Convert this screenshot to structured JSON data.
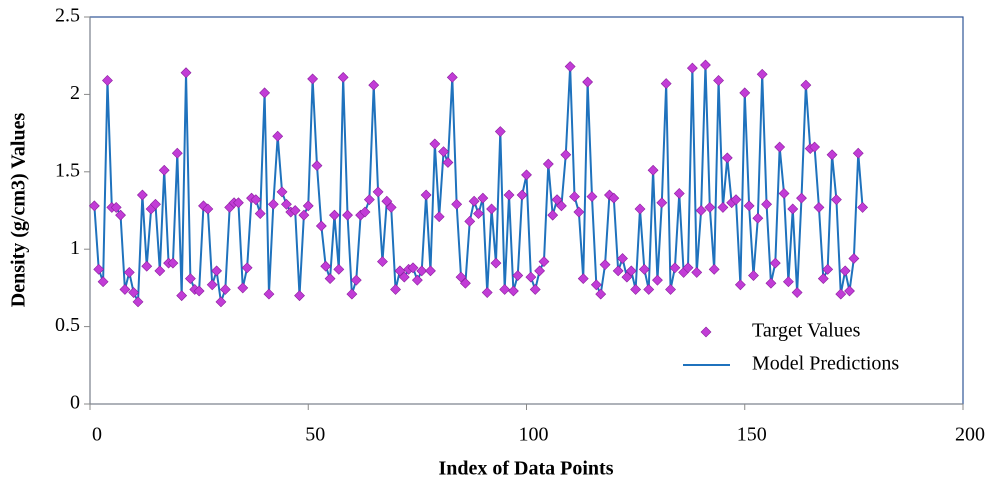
{
  "chart_data": {
    "type": "scatter-line",
    "xlabel": "Index of Data Points",
    "ylabel": "Density (g/cm3) Values",
    "xlim": [
      0,
      200
    ],
    "xticks": [
      0,
      50,
      100,
      150,
      200
    ],
    "ylim": [
      0,
      2.5
    ],
    "yticks": [
      0,
      0.5,
      1,
      1.5,
      2,
      2.5
    ],
    "legend": "lower right",
    "x": [
      1,
      2,
      3,
      4,
      5,
      6,
      7,
      8,
      9,
      10,
      11,
      12,
      13,
      14,
      15,
      16,
      17,
      18,
      19,
      20,
      21,
      22,
      23,
      24,
      25,
      26,
      27,
      28,
      29,
      30,
      31,
      32,
      33,
      34,
      35,
      36,
      37,
      38,
      39,
      40,
      41,
      42,
      43,
      44,
      45,
      46,
      47,
      48,
      49,
      50,
      51,
      52,
      53,
      54,
      55,
      56,
      57,
      58,
      59,
      60,
      61,
      62,
      63,
      64,
      65,
      66,
      67,
      68,
      69,
      70,
      71,
      72,
      73,
      74,
      75,
      76,
      77,
      78,
      79,
      80,
      81,
      82,
      83,
      84,
      85,
      86,
      87,
      88,
      89,
      90,
      91,
      92,
      93,
      94,
      95,
      96,
      97,
      98,
      99,
      100,
      101,
      102,
      103,
      104,
      105,
      106,
      107,
      108,
      109,
      110,
      111,
      112,
      113,
      114,
      115,
      116,
      117,
      118,
      119,
      120,
      121,
      122,
      123,
      124,
      125,
      126,
      127,
      128,
      129,
      130,
      131,
      132,
      133,
      134,
      135,
      136,
      137,
      138,
      139,
      140,
      141,
      142,
      143,
      144,
      145,
      146,
      147,
      148,
      149,
      150,
      151,
      152,
      153,
      154,
      155,
      156,
      157,
      158,
      159,
      160,
      161,
      162,
      163,
      164,
      165,
      166,
      167,
      168,
      169,
      170,
      171,
      172,
      173,
      174,
      175,
      176,
      177
    ],
    "series": [
      {
        "name": "Target Values",
        "color": "#c23cd6",
        "style": "marker",
        "values": [
          1.28,
          0.87,
          0.79,
          2.09,
          1.27,
          1.27,
          1.22,
          0.74,
          0.85,
          0.72,
          0.66,
          1.35,
          0.89,
          1.26,
          1.29,
          0.86,
          1.51,
          0.91,
          0.91,
          1.62,
          0.7,
          2.14,
          0.81,
          0.74,
          0.73,
          1.28,
          1.26,
          0.77,
          0.86,
          0.66,
          0.74,
          1.27,
          1.3,
          1.3,
          0.75,
          0.88,
          1.33,
          1.32,
          1.23,
          2.01,
          0.71,
          1.29,
          1.73,
          1.37,
          1.29,
          1.24,
          1.25,
          0.7,
          1.22,
          1.28,
          2.1,
          1.54,
          1.15,
          0.89,
          0.81,
          1.22,
          0.87,
          2.11,
          1.22,
          0.71,
          0.8,
          1.22,
          1.24,
          1.32,
          2.06,
          1.37,
          0.92,
          1.31,
          1.27,
          0.74,
          0.86,
          0.82,
          0.87,
          0.88,
          0.8,
          0.86,
          1.35,
          0.86,
          1.68,
          1.21,
          1.63,
          1.56,
          2.11,
          1.29,
          0.82,
          0.78,
          1.18,
          1.31,
          1.23,
          1.33,
          0.72,
          1.26,
          0.91,
          1.76,
          0.74,
          1.35,
          0.73,
          0.83,
          1.35,
          1.48,
          0.82,
          0.74,
          0.86,
          0.92,
          1.55,
          1.22,
          1.32,
          1.28,
          1.61,
          2.18,
          1.34,
          1.24,
          0.81,
          2.08,
          1.34,
          0.77,
          0.71,
          0.9,
          1.35,
          1.33,
          0.86,
          0.94,
          0.82,
          0.86,
          0.74,
          1.26,
          0.87,
          0.74,
          1.51,
          0.8,
          1.3,
          2.07,
          0.74,
          0.88,
          1.36,
          0.85,
          0.88,
          2.17,
          0.85,
          1.25,
          2.19,
          1.27,
          0.87,
          2.09,
          1.27,
          1.59,
          1.3,
          1.32,
          0.77,
          2.01,
          1.28,
          0.83,
          1.2,
          2.13,
          1.29,
          0.78,
          0.91,
          1.66,
          1.36,
          0.79,
          1.26,
          0.72,
          1.33,
          2.06,
          1.65,
          1.66,
          1.27,
          0.81,
          0.87,
          1.61,
          1.32,
          0.71,
          0.86,
          0.73,
          0.94,
          1.62,
          1.27
        ]
      },
      {
        "name": "Model Predictions",
        "color": "#1f72bd",
        "style": "line",
        "values": [
          1.28,
          0.87,
          0.79,
          2.09,
          1.27,
          1.27,
          1.22,
          0.74,
          0.85,
          0.72,
          0.66,
          1.35,
          0.89,
          1.26,
          1.29,
          0.86,
          1.51,
          0.91,
          0.91,
          1.62,
          0.7,
          2.14,
          0.81,
          0.74,
          0.73,
          1.28,
          1.26,
          0.77,
          0.86,
          0.66,
          0.74,
          1.27,
          1.3,
          1.3,
          0.75,
          0.88,
          1.33,
          1.32,
          1.23,
          2.01,
          0.71,
          1.29,
          1.73,
          1.37,
          1.29,
          1.24,
          1.25,
          0.7,
          1.22,
          1.28,
          2.1,
          1.54,
          1.15,
          0.89,
          0.81,
          1.22,
          0.87,
          2.11,
          1.22,
          0.71,
          0.8,
          1.22,
          1.24,
          1.32,
          2.06,
          1.37,
          0.92,
          1.31,
          1.27,
          0.74,
          0.86,
          0.82,
          0.87,
          0.88,
          0.8,
          0.86,
          1.35,
          0.86,
          1.68,
          1.21,
          1.63,
          1.56,
          2.11,
          1.29,
          0.82,
          0.78,
          1.18,
          1.31,
          1.23,
          1.33,
          0.72,
          1.26,
          0.91,
          1.76,
          0.74,
          1.35,
          0.73,
          0.83,
          1.35,
          1.48,
          0.82,
          0.74,
          0.86,
          0.92,
          1.55,
          1.22,
          1.32,
          1.28,
          1.61,
          2.18,
          1.34,
          1.24,
          0.81,
          2.08,
          1.34,
          0.77,
          0.71,
          0.9,
          1.35,
          1.33,
          0.86,
          0.94,
          0.82,
          0.86,
          0.74,
          1.26,
          0.87,
          0.74,
          1.51,
          0.8,
          1.3,
          2.07,
          0.74,
          0.88,
          1.36,
          0.85,
          0.88,
          2.17,
          0.85,
          1.25,
          2.19,
          1.27,
          0.87,
          2.09,
          1.27,
          1.59,
          1.3,
          1.32,
          0.77,
          2.01,
          1.28,
          0.83,
          1.2,
          2.13,
          1.29,
          0.78,
          0.91,
          1.66,
          1.36,
          0.79,
          1.26,
          0.72,
          1.33,
          2.06,
          1.65,
          1.66,
          1.27,
          0.81,
          0.87,
          1.61,
          1.32,
          0.71,
          0.86,
          0.73,
          0.94,
          1.62,
          1.27
        ]
      }
    ]
  }
}
